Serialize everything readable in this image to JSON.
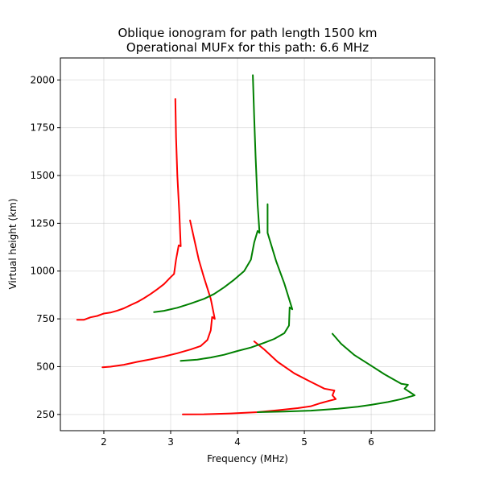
{
  "chart_data": {
    "type": "line",
    "title": "Oblique ionogram for path length 1500 km",
    "subtitle": "Operational MUFx for this path: 6.6 MHz",
    "xlabel": "Frequency (MHz)",
    "ylabel": "Virtual height (km)",
    "xlim": [
      1.35,
      6.95
    ],
    "ylim": [
      165,
      2115
    ],
    "xticks": [
      2,
      3,
      4,
      5,
      6
    ],
    "yticks": [
      250,
      500,
      750,
      1000,
      1250,
      1500,
      1750,
      2000
    ],
    "grid": true,
    "legend": "none",
    "series": [
      {
        "color": "#ff0000",
        "points": [
          [
            1.6,
            745
          ],
          [
            1.7,
            745
          ],
          [
            1.8,
            758
          ],
          [
            1.9,
            765
          ],
          [
            2.0,
            778
          ],
          [
            2.1,
            783
          ],
          [
            2.2,
            793
          ],
          [
            2.3,
            805
          ],
          [
            2.4,
            822
          ],
          [
            2.5,
            838
          ],
          [
            2.6,
            858
          ],
          [
            2.7,
            880
          ],
          [
            2.8,
            905
          ],
          [
            2.9,
            932
          ],
          [
            3.0,
            968
          ],
          [
            3.05,
            985
          ],
          [
            3.08,
            1060
          ],
          [
            3.12,
            1135
          ],
          [
            3.15,
            1130
          ],
          [
            3.13,
            1300
          ],
          [
            3.1,
            1500
          ],
          [
            3.08,
            1700
          ],
          [
            3.07,
            1900
          ]
        ]
      },
      {
        "color": "#ff0000",
        "points": [
          [
            1.98,
            497
          ],
          [
            2.1,
            500
          ],
          [
            2.3,
            510
          ],
          [
            2.5,
            525
          ],
          [
            2.7,
            538
          ],
          [
            2.9,
            553
          ],
          [
            3.1,
            570
          ],
          [
            3.3,
            590
          ],
          [
            3.45,
            608
          ],
          [
            3.55,
            640
          ],
          [
            3.6,
            690
          ],
          [
            3.62,
            760
          ],
          [
            3.66,
            750
          ],
          [
            3.6,
            855
          ],
          [
            3.5,
            965
          ],
          [
            3.42,
            1060
          ],
          [
            3.35,
            1170
          ],
          [
            3.29,
            1265
          ]
        ]
      },
      {
        "color": "#ff0000",
        "points": [
          [
            3.18,
            250
          ],
          [
            3.5,
            251
          ],
          [
            3.9,
            255
          ],
          [
            4.3,
            262
          ],
          [
            4.6,
            272
          ],
          [
            4.9,
            283
          ],
          [
            5.1,
            293
          ],
          [
            5.25,
            310
          ],
          [
            5.38,
            322
          ],
          [
            5.47,
            330
          ],
          [
            5.42,
            350
          ],
          [
            5.45,
            375
          ],
          [
            5.3,
            385
          ],
          [
            5.1,
            420
          ],
          [
            4.85,
            465
          ],
          [
            4.6,
            525
          ],
          [
            4.4,
            590
          ],
          [
            4.25,
            632
          ]
        ]
      },
      {
        "color": "#008000",
        "points": [
          [
            2.75,
            785
          ],
          [
            2.9,
            792
          ],
          [
            3.1,
            808
          ],
          [
            3.3,
            830
          ],
          [
            3.5,
            855
          ],
          [
            3.65,
            880
          ],
          [
            3.8,
            915
          ],
          [
            3.95,
            955
          ],
          [
            4.1,
            1000
          ],
          [
            4.2,
            1060
          ],
          [
            4.25,
            1150
          ],
          [
            4.3,
            1210
          ],
          [
            4.33,
            1200
          ],
          [
            4.3,
            1350
          ],
          [
            4.27,
            1600
          ],
          [
            4.25,
            1800
          ],
          [
            4.23,
            2025
          ]
        ]
      },
      {
        "color": "#008000",
        "points": [
          [
            3.15,
            530
          ],
          [
            3.4,
            537
          ],
          [
            3.6,
            548
          ],
          [
            3.8,
            562
          ],
          [
            4.0,
            582
          ],
          [
            4.2,
            600
          ],
          [
            4.4,
            625
          ],
          [
            4.55,
            645
          ],
          [
            4.7,
            675
          ],
          [
            4.77,
            715
          ],
          [
            4.78,
            810
          ],
          [
            4.82,
            800
          ],
          [
            4.7,
            935
          ],
          [
            4.58,
            1050
          ],
          [
            4.45,
            1200
          ],
          [
            4.45,
            1350
          ]
        ]
      },
      {
        "color": "#008000",
        "points": [
          [
            4.3,
            262
          ],
          [
            4.7,
            265
          ],
          [
            5.1,
            270
          ],
          [
            5.5,
            280
          ],
          [
            5.8,
            290
          ],
          [
            6.0,
            300
          ],
          [
            6.25,
            315
          ],
          [
            6.45,
            330
          ],
          [
            6.6,
            345
          ],
          [
            6.65,
            350
          ],
          [
            6.5,
            385
          ],
          [
            6.55,
            405
          ],
          [
            6.45,
            410
          ],
          [
            6.2,
            460
          ],
          [
            6.0,
            505
          ],
          [
            5.75,
            560
          ],
          [
            5.55,
            620
          ],
          [
            5.42,
            672
          ]
        ]
      }
    ]
  }
}
